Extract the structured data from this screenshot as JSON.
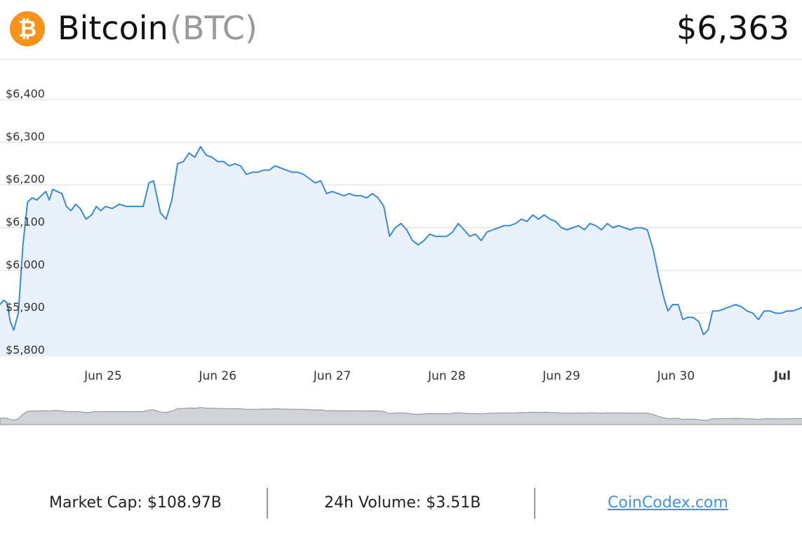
{
  "header": {
    "logo_icon": "bitcoin-icon",
    "logo_glyph": "₿",
    "name": "Bitcoin",
    "symbol": "(BTC)",
    "price": "$6,363"
  },
  "colors": {
    "brand": "#f7931a",
    "line": "#3a8ad9",
    "area": "#e9f1fb",
    "nav_fill": "#cfd2d6",
    "nav_line": "#8a8d91",
    "link": "#4a90d9"
  },
  "chart_data": {
    "type": "area",
    "title": "",
    "xlabel": "",
    "ylabel": "",
    "ylim": [
      5800,
      6400
    ],
    "y_ticks": [
      "$5,800",
      "$5,900",
      "$6,000",
      "$6,100",
      "$6,200",
      "$6,300",
      "$6,400"
    ],
    "y_tick_values": [
      5800,
      5900,
      6000,
      6100,
      6200,
      6300,
      6400
    ],
    "x_ticks": [
      {
        "label": "Jun 25",
        "day": 1,
        "bold": false
      },
      {
        "label": "Jun 26",
        "day": 2,
        "bold": false
      },
      {
        "label": "Jun 27",
        "day": 3,
        "bold": false
      },
      {
        "label": "Jun 28",
        "day": 4,
        "bold": false
      },
      {
        "label": "Jun 29",
        "day": 5,
        "bold": false
      },
      {
        "label": "Jun 30",
        "day": 6,
        "bold": false
      },
      {
        "label": "Jul",
        "day": 7,
        "bold": true
      }
    ],
    "x_range_days": [
      0.1,
      7.1
    ],
    "series": [
      {
        "points": [
          [
            0.1,
            5920
          ],
          [
            0.13,
            5930
          ],
          [
            0.16,
            5925
          ],
          [
            0.19,
            5880
          ],
          [
            0.22,
            5860
          ],
          [
            0.26,
            5900
          ],
          [
            0.3,
            6060
          ],
          [
            0.34,
            6160
          ],
          [
            0.38,
            6170
          ],
          [
            0.42,
            6165
          ],
          [
            0.46,
            6175
          ],
          [
            0.5,
            6185
          ],
          [
            0.53,
            6165
          ],
          [
            0.56,
            6190
          ],
          [
            0.6,
            6185
          ],
          [
            0.64,
            6180
          ],
          [
            0.68,
            6150
          ],
          [
            0.72,
            6140
          ],
          [
            0.76,
            6155
          ],
          [
            0.8,
            6145
          ],
          [
            0.85,
            6120
          ],
          [
            0.9,
            6130
          ],
          [
            0.94,
            6150
          ],
          [
            0.98,
            6140
          ],
          [
            1.02,
            6150
          ],
          [
            1.08,
            6145
          ],
          [
            1.14,
            6155
          ],
          [
            1.2,
            6150
          ],
          [
            1.25,
            6150
          ],
          [
            1.3,
            6150
          ],
          [
            1.35,
            6150
          ],
          [
            1.4,
            6205
          ],
          [
            1.44,
            6210
          ],
          [
            1.5,
            6135
          ],
          [
            1.55,
            6120
          ],
          [
            1.6,
            6165
          ],
          [
            1.65,
            6250
          ],
          [
            1.7,
            6255
          ],
          [
            1.75,
            6275
          ],
          [
            1.8,
            6265
          ],
          [
            1.85,
            6290
          ],
          [
            1.9,
            6270
          ],
          [
            1.95,
            6265
          ],
          [
            2.0,
            6255
          ],
          [
            2.05,
            6255
          ],
          [
            2.1,
            6245
          ],
          [
            2.15,
            6250
          ],
          [
            2.2,
            6245
          ],
          [
            2.25,
            6225
          ],
          [
            2.3,
            6230
          ],
          [
            2.35,
            6230
          ],
          [
            2.4,
            6235
          ],
          [
            2.45,
            6235
          ],
          [
            2.5,
            6245
          ],
          [
            2.55,
            6240
          ],
          [
            2.6,
            6235
          ],
          [
            2.65,
            6230
          ],
          [
            2.7,
            6230
          ],
          [
            2.75,
            6225
          ],
          [
            2.8,
            6215
          ],
          [
            2.85,
            6205
          ],
          [
            2.9,
            6210
          ],
          [
            2.95,
            6180
          ],
          [
            3.0,
            6185
          ],
          [
            3.05,
            6180
          ],
          [
            3.1,
            6175
          ],
          [
            3.15,
            6180
          ],
          [
            3.2,
            6175
          ],
          [
            3.25,
            6175
          ],
          [
            3.3,
            6170
          ],
          [
            3.35,
            6180
          ],
          [
            3.4,
            6170
          ],
          [
            3.45,
            6150
          ],
          [
            3.5,
            6080
          ],
          [
            3.55,
            6100
          ],
          [
            3.6,
            6110
          ],
          [
            3.65,
            6095
          ],
          [
            3.7,
            6070
          ],
          [
            3.75,
            6060
          ],
          [
            3.8,
            6070
          ],
          [
            3.85,
            6085
          ],
          [
            3.9,
            6080
          ],
          [
            3.95,
            6080
          ],
          [
            4.0,
            6080
          ],
          [
            4.05,
            6090
          ],
          [
            4.1,
            6110
          ],
          [
            4.15,
            6095
          ],
          [
            4.2,
            6080
          ],
          [
            4.25,
            6085
          ],
          [
            4.3,
            6070
          ],
          [
            4.35,
            6090
          ],
          [
            4.4,
            6095
          ],
          [
            4.45,
            6100
          ],
          [
            4.5,
            6105
          ],
          [
            4.55,
            6105
          ],
          [
            4.6,
            6110
          ],
          [
            4.65,
            6120
          ],
          [
            4.7,
            6115
          ],
          [
            4.75,
            6130
          ],
          [
            4.8,
            6120
          ],
          [
            4.85,
            6130
          ],
          [
            4.9,
            6120
          ],
          [
            4.95,
            6115
          ],
          [
            5.0,
            6100
          ],
          [
            5.05,
            6095
          ],
          [
            5.1,
            6100
          ],
          [
            5.15,
            6105
          ],
          [
            5.2,
            6095
          ],
          [
            5.25,
            6110
          ],
          [
            5.3,
            6105
          ],
          [
            5.35,
            6095
          ],
          [
            5.4,
            6110
          ],
          [
            5.45,
            6100
          ],
          [
            5.5,
            6105
          ],
          [
            5.55,
            6100
          ],
          [
            5.6,
            6095
          ],
          [
            5.65,
            6100
          ],
          [
            5.7,
            6100
          ],
          [
            5.75,
            6095
          ],
          [
            5.8,
            6050
          ],
          [
            5.85,
            5985
          ],
          [
            5.9,
            5930
          ],
          [
            5.93,
            5905
          ],
          [
            5.97,
            5920
          ],
          [
            6.02,
            5920
          ],
          [
            6.06,
            5885
          ],
          [
            6.1,
            5890
          ],
          [
            6.15,
            5890
          ],
          [
            6.2,
            5880
          ],
          [
            6.24,
            5850
          ],
          [
            6.28,
            5860
          ],
          [
            6.32,
            5905
          ],
          [
            6.37,
            5905
          ],
          [
            6.42,
            5910
          ],
          [
            6.47,
            5915
          ],
          [
            6.52,
            5920
          ],
          [
            6.57,
            5915
          ],
          [
            6.62,
            5905
          ],
          [
            6.67,
            5900
          ],
          [
            6.72,
            5885
          ],
          [
            6.77,
            5905
          ],
          [
            6.82,
            5905
          ],
          [
            6.87,
            5900
          ],
          [
            6.92,
            5900
          ],
          [
            6.97,
            5905
          ],
          [
            7.02,
            5905
          ],
          [
            7.07,
            5910
          ],
          [
            7.12,
            5915
          ],
          [
            7.16,
            5920
          ]
        ]
      }
    ]
  },
  "footer": {
    "market_cap": "Market Cap: $108.97B",
    "volume": "24h Volume: $3.51B",
    "link": "CoinCodex.com"
  }
}
